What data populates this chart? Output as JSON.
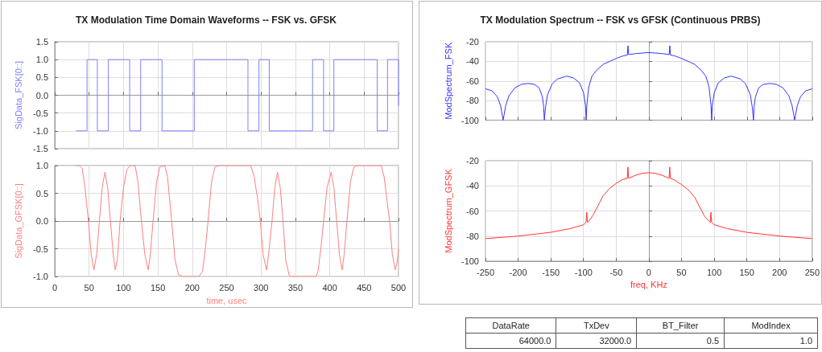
{
  "chart_data": [
    {
      "type": "step",
      "title": "TX Modulation Time Domain Waveforms -- FSK vs. GFSK",
      "ylabel": "SigData_FSK[0::]",
      "x": [
        31,
        47,
        62,
        78,
        109,
        125,
        156,
        203,
        281,
        297,
        312,
        375,
        391,
        406,
        469,
        484,
        500,
        500
      ],
      "series": [
        {
          "color": "#7f7fff",
          "values": [
            -1,
            1,
            -1,
            1,
            -1,
            1,
            -1,
            1,
            -1,
            1,
            -1,
            1,
            -1,
            1,
            -1,
            1,
            1,
            -0.3
          ]
        }
      ],
      "xlim": [
        0,
        500
      ],
      "xticks": [
        0,
        50,
        100,
        150,
        200,
        250,
        300,
        350,
        400,
        450,
        500
      ],
      "ylim": [
        -1.5,
        1.5
      ],
      "yticks": [
        {
          "value": -1.5,
          "label": "-1.5"
        },
        {
          "value": -1,
          "label": "-1.0"
        },
        {
          "value": -0.5,
          "label": "-0.5"
        },
        {
          "value": 0,
          "label": "0.0"
        },
        {
          "value": 0.5,
          "label": "0.5"
        },
        {
          "value": 1,
          "label": "1.0"
        },
        {
          "value": 1.5,
          "label": "1.5"
        }
      ],
      "grid": true,
      "tick_labels": "y"
    },
    {
      "type": "line",
      "xlabel": "time, usec",
      "ylabel": "SigData_GFSK[0::]",
      "x": [
        31,
        36,
        40,
        44,
        49,
        53,
        57,
        61,
        65,
        69,
        73,
        77,
        81,
        85,
        88,
        91,
        95,
        100,
        105,
        110,
        117,
        121,
        126,
        131,
        136,
        139,
        143,
        148,
        153,
        160,
        164,
        170,
        175,
        180,
        185,
        210,
        215,
        219,
        223,
        228,
        233,
        240,
        285,
        290,
        295,
        299,
        303,
        308,
        311,
        316,
        320,
        324,
        328,
        332,
        336,
        341,
        345,
        380,
        383,
        387,
        391,
        396,
        402,
        406,
        410,
        414,
        418,
        421,
        425,
        430,
        435,
        440,
        475,
        479,
        483,
        487,
        491,
        495,
        498,
        500
      ],
      "series": [
        {
          "color": "#ff7f7f",
          "values": [
            1,
            1,
            0.95,
            0.6,
            0,
            -0.6,
            -0.88,
            -0.6,
            0,
            0.6,
            0.88,
            0.6,
            0,
            -0.6,
            -0.88,
            -0.7,
            0,
            0.6,
            0.93,
            1,
            1,
            0.7,
            0,
            -0.6,
            -0.88,
            -0.6,
            0,
            0.7,
            0.98,
            1,
            0.8,
            0,
            -0.7,
            -0.97,
            -1,
            -1,
            -0.9,
            -0.5,
            0,
            0.7,
            0.98,
            1,
            1,
            0.8,
            0.4,
            0,
            -0.6,
            -0.88,
            -0.6,
            0,
            0.6,
            0.88,
            0.6,
            0,
            -0.7,
            -0.98,
            -1,
            -1,
            -0.9,
            -0.5,
            0,
            0.6,
            0.88,
            0.6,
            0,
            -0.6,
            -0.88,
            -0.6,
            0,
            0.7,
            0.97,
            1,
            1,
            0.8,
            0.4,
            0,
            -0.6,
            -0.88,
            -0.75,
            -0.5
          ]
        }
      ],
      "xlim": [
        0,
        500
      ],
      "xticks": [
        0,
        50,
        100,
        150,
        200,
        250,
        300,
        350,
        400,
        450,
        500
      ],
      "ylim": [
        -1,
        1
      ],
      "yticks": [
        {
          "value": -1,
          "label": "-1.0"
        },
        {
          "value": -0.5,
          "label": "-0.5"
        },
        {
          "value": 0,
          "label": "0.0"
        },
        {
          "value": 0.5,
          "label": "0.5"
        },
        {
          "value": 1,
          "label": "1.0"
        }
      ],
      "grid": true
    },
    {
      "type": "line",
      "title": "TX Modulation Spectrum -- FSK vs GFSK (Continuous PRBS)",
      "ylabel": "ModSpectrum_FSK",
      "x": [
        -250,
        -240,
        -232,
        -227,
        -223,
        -219,
        -214,
        -205,
        -195,
        -185,
        -175,
        -168,
        -163,
        -161,
        -160,
        -158,
        -155,
        -148,
        -140,
        -126,
        -115,
        -106,
        -100,
        -97,
        -96,
        -95,
        -92,
        -87,
        -80,
        -70,
        -60,
        -50,
        -40,
        -33,
        -32,
        -31,
        -20,
        -10,
        0,
        10,
        20,
        31,
        32,
        33,
        40,
        50,
        60,
        70,
        80,
        87,
        92,
        95,
        96,
        97,
        100,
        106,
        115,
        126,
        140,
        148,
        155,
        158,
        160,
        161,
        163,
        168,
        175,
        185,
        195,
        205,
        214,
        219,
        223,
        227,
        232,
        240,
        250
      ],
      "series": [
        {
          "color": "#3535ff",
          "values": [
            -68,
            -70,
            -76,
            -85,
            -100,
            -85,
            -75,
            -67,
            -63.5,
            -62.5,
            -63.5,
            -67,
            -76,
            -86,
            -100,
            -86,
            -74,
            -63,
            -58,
            -55,
            -57,
            -62,
            -72,
            -85,
            -100,
            -85,
            -66,
            -55,
            -49,
            -43,
            -40,
            -37,
            -34.5,
            -33.5,
            -24,
            -33,
            -32,
            -31.5,
            -31,
            -31.5,
            -32,
            -33,
            -24,
            -33.5,
            -34.5,
            -37,
            -40,
            -43,
            -49,
            -55,
            -66,
            -85,
            -100,
            -85,
            -72,
            -62,
            -57,
            -55,
            -58,
            -63,
            -74,
            -86,
            -100,
            -86,
            -76,
            -67,
            -63.5,
            -62.5,
            -63.5,
            -67,
            -75,
            -85,
            -100,
            -85,
            -76,
            -70,
            -68
          ]
        }
      ],
      "xlim": [
        -250,
        250
      ],
      "xticks": [
        -250,
        -200,
        -150,
        -100,
        -50,
        0,
        50,
        100,
        150,
        200,
        250
      ],
      "ylim": [
        -100,
        -20
      ],
      "yticks": [
        -100,
        -80,
        -60,
        -40,
        -20
      ],
      "grid": true,
      "tick_labels": "y"
    },
    {
      "type": "line",
      "xlabel": "freq, KHz",
      "ylabel": "ModSpectrum_GFSK",
      "x": [
        -250,
        -200,
        -150,
        -120,
        -100,
        -96,
        -95,
        -94,
        -90,
        -85,
        -80,
        -75,
        -70,
        -60,
        -50,
        -40,
        -33,
        -32,
        -31,
        -20,
        -10,
        0,
        10,
        20,
        31,
        32,
        33,
        40,
        50,
        60,
        70,
        75,
        80,
        85,
        90,
        94,
        95,
        96,
        100,
        120,
        150,
        200,
        250
      ],
      "series": [
        {
          "color": "#ff3535",
          "values": [
            -82,
            -80,
            -77,
            -74,
            -71,
            -69,
            -61,
            -69,
            -67,
            -63,
            -58,
            -53,
            -48,
            -42,
            -38,
            -35,
            -34,
            -25,
            -34,
            -31.5,
            -30,
            -29.5,
            -30,
            -31.5,
            -34,
            -25,
            -34,
            -35.5,
            -39,
            -43,
            -49,
            -54,
            -59,
            -64,
            -67,
            -69,
            -61,
            -69,
            -71,
            -74,
            -77,
            -80,
            -82
          ]
        }
      ],
      "xlim": [
        -250,
        250
      ],
      "xticks": [
        -250,
        -200,
        -150,
        -100,
        -50,
        0,
        50,
        100,
        150,
        200,
        250
      ],
      "ylim": [
        -100,
        -20
      ],
      "yticks": [
        -100,
        -80,
        -60,
        -40,
        -20
      ],
      "grid": true
    },
    {
      "type": "other",
      "annotations": [
        "DataRate",
        "TxDev",
        "BT_Filter",
        "ModIndex",
        "64000.0",
        "32000.0",
        "0.5",
        "1.0"
      ]
    }
  ]
}
